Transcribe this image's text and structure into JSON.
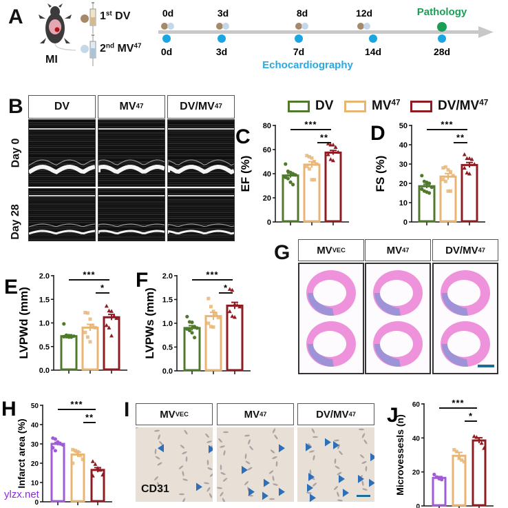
{
  "panels": {
    "A": {
      "letter": "A",
      "model_label": "MI",
      "injection_1": {
        "prefix": "1",
        "sup": "st",
        "name": "DV"
      },
      "injection_2": {
        "prefix": "2",
        "sup": "nd",
        "name": "MV",
        "name_sup": "47"
      },
      "timeline_top": [
        "0d",
        "3d",
        "8d",
        "12d"
      ],
      "timeline_bottom": [
        "0d",
        "3d",
        "7d",
        "14d",
        "28d"
      ],
      "pathology_label": "Pathology",
      "echo_label": "Echocardiography",
      "colors": {
        "dv_dot": "#a6896a",
        "mv_dot": "#c5d8ea",
        "echo_dot": "#1aa6e0",
        "pathology_dot": "#1a9e55",
        "pathology_text": "#1a9e55",
        "echo_text": "#29a9df",
        "axis": "#c8c8c8"
      }
    },
    "B": {
      "letter": "B",
      "columns": [
        {
          "name": "DV",
          "sup": ""
        },
        {
          "name": "MV",
          "sup": "47"
        },
        {
          "name": "DV/MV",
          "sup": "47"
        }
      ],
      "rows": [
        "Day 0",
        "Day 28"
      ]
    },
    "legend": [
      {
        "name": "DV",
        "sup": "",
        "color": "#4f7a2b"
      },
      {
        "name": "MV",
        "sup": "47",
        "color": "#e8b574"
      },
      {
        "name": "DV/MV",
        "sup": "47",
        "color": "#8f1c22"
      }
    ],
    "G": {
      "letter": "G",
      "columns": [
        {
          "name": "MV",
          "sup": "VEC"
        },
        {
          "name": "MV",
          "sup": "47"
        },
        {
          "name": "DV/MV",
          "sup": "47"
        }
      ]
    },
    "I": {
      "letter": "I",
      "columns": [
        {
          "name": "MV",
          "sup": "VEC"
        },
        {
          "name": "MV",
          "sup": "47"
        },
        {
          "name": "DV/MV",
          "sup": "47"
        }
      ],
      "stain_label": "CD31",
      "arrowhead_color": "#2e6fb8"
    }
  },
  "watermark": "ylzx.net",
  "chart_data": [
    {
      "id": "C",
      "letter": "C",
      "type": "bar",
      "ylabel": "EF (%)",
      "ylim": [
        0,
        80
      ],
      "yticks": [
        0,
        20,
        40,
        60,
        80
      ],
      "categories": [
        "DV",
        "MV47",
        "DV/MV47"
      ],
      "colors": [
        "#4f7a2b",
        "#e8b574",
        "#8f1c22"
      ],
      "markers": [
        "circle",
        "square",
        "triangle"
      ],
      "values": [
        38.5,
        47.5,
        57.5
      ],
      "sem": [
        1.8,
        2.5,
        1.8
      ],
      "points": [
        [
          48,
          42,
          41,
          40,
          39,
          37,
          36,
          33,
          31
        ],
        [
          55,
          54,
          53,
          50,
          48,
          46,
          44,
          35,
          35
        ],
        [
          65,
          64,
          64,
          62,
          58,
          56,
          52,
          51
        ]
      ],
      "significance": [
        {
          "from": 0,
          "to": 2,
          "label": "***"
        },
        {
          "from": 1,
          "to": 2,
          "label": "**"
        }
      ]
    },
    {
      "id": "D",
      "letter": "D",
      "type": "bar",
      "ylabel": "FS (%)",
      "ylim": [
        0,
        50
      ],
      "yticks": [
        0,
        10,
        20,
        30,
        40,
        50
      ],
      "categories": [
        "DV",
        "MV47",
        "DV/MV47"
      ],
      "colors": [
        "#4f7a2b",
        "#e8b574",
        "#8f1c22"
      ],
      "markers": [
        "circle",
        "square",
        "triangle"
      ],
      "values": [
        18.5,
        23.5,
        29.5
      ],
      "sem": [
        1.0,
        1.6,
        1.3
      ],
      "points": [
        [
          24,
          21,
          20.5,
          20,
          18,
          17,
          16,
          15.5,
          15
        ],
        [
          28,
          28.5,
          27,
          26,
          24,
          22,
          21,
          16,
          16
        ],
        [
          35,
          33,
          33,
          32.5,
          30,
          28,
          25.5,
          25
        ]
      ],
      "significance": [
        {
          "from": 0,
          "to": 2,
          "label": "***"
        },
        {
          "from": 1,
          "to": 2,
          "label": "**"
        }
      ]
    },
    {
      "id": "E",
      "letter": "E",
      "type": "bar",
      "ylabel": "LVPWd (mm)",
      "ylim": [
        0,
        2.0
      ],
      "yticks": [
        0.0,
        0.5,
        1.0,
        1.5,
        2.0
      ],
      "categories": [
        "DV",
        "MV47",
        "DV/MV47"
      ],
      "colors": [
        "#4f7a2b",
        "#e8b574",
        "#8f1c22"
      ],
      "markers": [
        "circle",
        "square",
        "triangle"
      ],
      "values": [
        0.72,
        0.9,
        1.12
      ],
      "sem": [
        0.03,
        0.07,
        0.06
      ],
      "points": [
        [
          0.98,
          0.74,
          0.73,
          0.72,
          0.72,
          0.71,
          0.71,
          0.7,
          0.7
        ],
        [
          1.22,
          1.21,
          1.08,
          0.95,
          0.9,
          0.8,
          0.7,
          0.6
        ],
        [
          1.36,
          1.26,
          1.25,
          1.15,
          1.1,
          0.95,
          0.9,
          0.73
        ]
      ],
      "significance": [
        {
          "from": 0,
          "to": 2,
          "label": "***"
        },
        {
          "from": 1,
          "to": 2,
          "label": "*"
        }
      ]
    },
    {
      "id": "F",
      "letter": "F",
      "type": "bar",
      "ylabel": "LVPWs (mm)",
      "ylim": [
        0,
        2.0
      ],
      "yticks": [
        0.0,
        0.5,
        1.0,
        1.5,
        2.0
      ],
      "categories": [
        "DV",
        "MV47",
        "DV/MV47"
      ],
      "colors": [
        "#4f7a2b",
        "#e8b574",
        "#8f1c22"
      ],
      "markers": [
        "circle",
        "square",
        "triangle"
      ],
      "values": [
        0.9,
        1.15,
        1.37
      ],
      "sem": [
        0.05,
        0.08,
        0.07
      ],
      "points": [
        [
          1.14,
          1.03,
          1.02,
          0.93,
          0.9,
          0.88,
          0.85,
          0.8,
          0.7
        ],
        [
          1.52,
          1.35,
          1.25,
          1.2,
          1.12,
          1.0,
          0.93,
          0.92
        ],
        [
          1.72,
          1.7,
          1.4,
          1.38,
          1.35,
          1.25,
          1.15,
          1.13
        ]
      ],
      "significance": [
        {
          "from": 0,
          "to": 2,
          "label": "***"
        },
        {
          "from": 1,
          "to": 2,
          "label": "*"
        }
      ]
    },
    {
      "id": "H",
      "letter": "H",
      "type": "bar",
      "ylabel": "Infarct area (%)",
      "ylim": [
        0,
        50
      ],
      "yticks": [
        0,
        10,
        20,
        30,
        40,
        50
      ],
      "categories": [
        "MVVEC",
        "MV47",
        "DV/MV47"
      ],
      "colors": [
        "#a05bd6",
        "#e8b574",
        "#8f1c22"
      ],
      "markers": [
        "circle",
        "square",
        "triangle"
      ],
      "values": [
        30,
        24.5,
        16.5
      ],
      "sem": [
        0.8,
        1.3,
        1.2
      ],
      "points": [
        [
          33,
          32.5,
          31,
          30,
          29.5,
          28,
          26.5
        ],
        [
          27,
          26.5,
          26,
          24,
          22,
          20
        ],
        [
          21,
          19.5,
          17.5,
          16.5,
          14,
          13.5
        ]
      ],
      "significance": [
        {
          "from": 0,
          "to": 2,
          "label": "***"
        },
        {
          "from": 1,
          "to": 2,
          "label": "**"
        }
      ]
    },
    {
      "id": "J",
      "letter": "J",
      "type": "bar",
      "ylabel": "Microvessesls (n)",
      "ylim": [
        0,
        60
      ],
      "yticks": [
        0,
        20,
        40,
        60
      ],
      "categories": [
        "MVVEC",
        "MV47",
        "DV/MV47"
      ],
      "colors": [
        "#a05bd6",
        "#e8b574",
        "#8f1c22"
      ],
      "markers": [
        "circle",
        "square",
        "triangle"
      ],
      "values": [
        16.5,
        29.5,
        38.5
      ],
      "sem": [
        0.8,
        2.0,
        1.6
      ],
      "points": [
        [
          18.5,
          17,
          16,
          15.5
        ],
        [
          33,
          32,
          28,
          27,
          26
        ],
        [
          41,
          40.5,
          39,
          37,
          34
        ]
      ],
      "significance": [
        {
          "from": 0,
          "to": 2,
          "label": "***"
        },
        {
          "from": 1,
          "to": 2,
          "label": "*"
        }
      ]
    }
  ]
}
